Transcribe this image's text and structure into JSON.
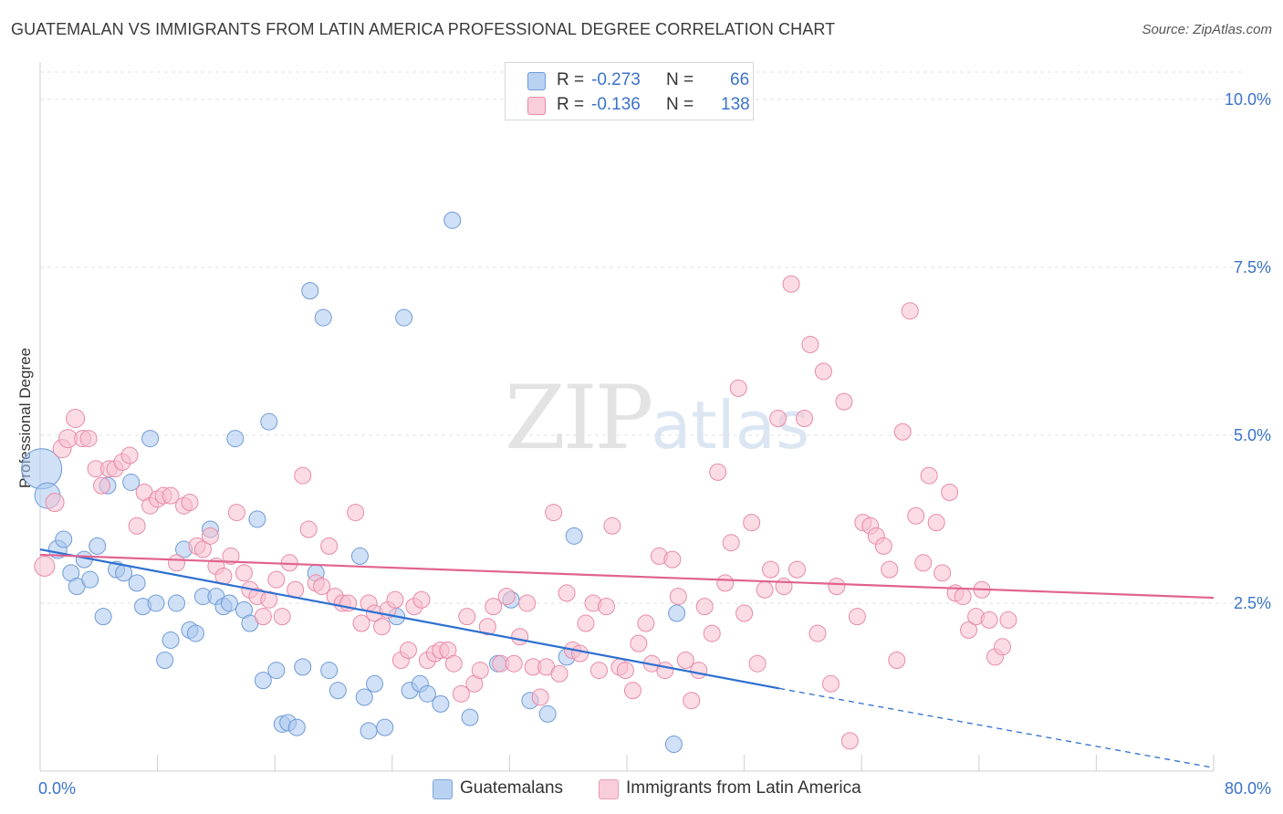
{
  "title": "GUATEMALAN VS IMMIGRANTS FROM LATIN AMERICA PROFESSIONAL DEGREE CORRELATION CHART",
  "source": "Source: ZipAtlas.com",
  "watermark": {
    "zip": "ZIP",
    "atlas": "atlas"
  },
  "legend": {
    "r_label": "R =",
    "n_label": "N =",
    "rows": [
      {
        "r": "-0.273",
        "n": "66",
        "color": "#a9c6ee",
        "border": "#6f9bd8"
      },
      {
        "r": "-0.136",
        "n": "138",
        "color": "#f7bfd0",
        "border": "#e88aa8"
      }
    ]
  },
  "chart_data": {
    "type": "scatter",
    "ylabel": "Professional Degree",
    "xlim": [
      0,
      80
    ],
    "ylim": [
      0,
      10.5
    ],
    "x_tick_labels": [
      {
        "value": 0,
        "label": "0.0%"
      },
      {
        "value": 80,
        "label": "80.0%"
      }
    ],
    "y_tick_labels": [
      {
        "value": 2.5,
        "label": "2.5%"
      },
      {
        "value": 5.0,
        "label": "5.0%"
      },
      {
        "value": 7.5,
        "label": "7.5%"
      },
      {
        "value": 10.0,
        "label": "10.0%"
      }
    ],
    "grid": true,
    "series": [
      {
        "name": "Guatemalans",
        "color": "#a9c6ee",
        "stroke": "#6f9bd8",
        "trend_color": "#2e6fd0",
        "trend": {
          "x0": 0,
          "y0": 3.3,
          "x1": 50.4,
          "y1": 1.23,
          "dash_to_x": 80,
          "dash_to_y": 0.05
        },
        "points": [
          [
            0.1,
            4.5,
            22
          ],
          [
            0.5,
            4.1,
            14
          ],
          [
            1.2,
            3.3,
            10
          ],
          [
            1.6,
            3.45,
            9
          ],
          [
            2.1,
            2.95,
            9
          ],
          [
            2.5,
            2.75,
            9
          ],
          [
            3.0,
            3.15,
            9
          ],
          [
            3.4,
            2.85,
            9
          ],
          [
            3.9,
            3.35,
            9
          ],
          [
            4.3,
            2.3,
            9
          ],
          [
            4.6,
            4.25,
            9
          ],
          [
            5.2,
            3.0,
            9
          ],
          [
            5.7,
            2.95,
            9
          ],
          [
            6.2,
            4.3,
            9
          ],
          [
            6.6,
            2.8,
            9
          ],
          [
            7.0,
            2.45,
            9
          ],
          [
            7.5,
            4.95,
            9
          ],
          [
            7.9,
            2.5,
            9
          ],
          [
            8.5,
            1.65,
            9
          ],
          [
            8.9,
            1.95,
            9
          ],
          [
            9.3,
            2.5,
            9
          ],
          [
            9.8,
            3.3,
            9
          ],
          [
            10.2,
            2.1,
            9
          ],
          [
            10.6,
            2.05,
            9
          ],
          [
            11.1,
            2.6,
            9
          ],
          [
            11.6,
            3.6,
            9
          ],
          [
            12.0,
            2.6,
            9
          ],
          [
            12.5,
            2.45,
            9
          ],
          [
            12.9,
            2.5,
            9
          ],
          [
            13.3,
            4.95,
            9
          ],
          [
            13.9,
            2.4,
            9
          ],
          [
            14.3,
            2.2,
            9
          ],
          [
            14.8,
            3.75,
            9
          ],
          [
            15.2,
            1.35,
            9
          ],
          [
            15.6,
            5.2,
            9
          ],
          [
            16.1,
            1.5,
            9
          ],
          [
            16.5,
            0.7,
            9
          ],
          [
            16.9,
            0.72,
            9
          ],
          [
            17.5,
            0.65,
            9
          ],
          [
            17.9,
            1.55,
            9
          ],
          [
            18.4,
            7.15,
            9
          ],
          [
            18.8,
            2.95,
            9
          ],
          [
            19.3,
            6.75,
            9
          ],
          [
            19.7,
            1.5,
            9
          ],
          [
            20.3,
            1.2,
            9
          ],
          [
            21.8,
            3.2,
            9
          ],
          [
            22.1,
            1.1,
            9
          ],
          [
            22.4,
            0.6,
            9
          ],
          [
            22.8,
            1.3,
            9
          ],
          [
            23.5,
            0.65,
            9
          ],
          [
            24.3,
            2.3,
            9
          ],
          [
            24.8,
            6.75,
            9
          ],
          [
            25.2,
            1.2,
            9
          ],
          [
            25.9,
            1.3,
            9
          ],
          [
            26.4,
            1.15,
            9
          ],
          [
            27.3,
            1.0,
            9
          ],
          [
            28.1,
            8.2,
            9
          ],
          [
            29.3,
            0.8,
            9
          ],
          [
            31.2,
            1.6,
            9
          ],
          [
            32.1,
            2.55,
            9
          ],
          [
            33.4,
            1.05,
            9
          ],
          [
            34.6,
            0.85,
            9
          ],
          [
            35.9,
            1.7,
            9
          ],
          [
            36.4,
            3.5,
            9
          ],
          [
            43.4,
            2.35,
            9
          ],
          [
            43.2,
            0.4,
            9
          ]
        ]
      },
      {
        "name": "Immigrants from Latin America",
        "color": "#f7bfd0",
        "stroke": "#e88aa8",
        "trend_color": "#e0638f",
        "trend": {
          "x0": 0,
          "y0": 3.22,
          "x1": 80,
          "y1": 2.58
        },
        "points": [
          [
            0.3,
            3.05,
            11
          ],
          [
            1.0,
            4.0,
            10
          ],
          [
            1.5,
            4.8,
            10
          ],
          [
            1.9,
            4.95,
            10
          ],
          [
            2.4,
            5.25,
            10
          ],
          [
            2.9,
            4.95,
            9
          ],
          [
            3.3,
            4.95,
            9
          ],
          [
            3.8,
            4.5,
            9
          ],
          [
            4.2,
            4.25,
            9
          ],
          [
            4.7,
            4.5,
            9
          ],
          [
            5.1,
            4.5,
            9
          ],
          [
            5.6,
            4.6,
            9
          ],
          [
            6.1,
            4.7,
            9
          ],
          [
            6.6,
            3.65,
            9
          ],
          [
            7.1,
            4.15,
            9
          ],
          [
            7.5,
            3.95,
            9
          ],
          [
            8.0,
            4.05,
            9
          ],
          [
            8.4,
            4.1,
            9
          ],
          [
            8.9,
            4.1,
            9
          ],
          [
            9.3,
            3.1,
            9
          ],
          [
            9.8,
            3.95,
            9
          ],
          [
            10.2,
            4.0,
            9
          ],
          [
            10.7,
            3.35,
            9
          ],
          [
            11.1,
            3.3,
            9
          ],
          [
            11.6,
            3.5,
            9
          ],
          [
            12.0,
            3.05,
            9
          ],
          [
            12.5,
            2.9,
            9
          ],
          [
            13.0,
            3.2,
            9
          ],
          [
            13.4,
            3.85,
            9
          ],
          [
            13.9,
            2.95,
            9
          ],
          [
            14.3,
            2.7,
            9
          ],
          [
            14.8,
            2.6,
            9
          ],
          [
            15.2,
            2.3,
            9
          ],
          [
            15.6,
            2.55,
            9
          ],
          [
            16.1,
            2.85,
            9
          ],
          [
            16.5,
            2.3,
            9
          ],
          [
            17.0,
            3.1,
            9
          ],
          [
            17.4,
            2.7,
            9
          ],
          [
            17.9,
            4.4,
            9
          ],
          [
            18.3,
            3.6,
            9
          ],
          [
            18.8,
            2.8,
            9
          ],
          [
            19.2,
            2.75,
            9
          ],
          [
            19.7,
            3.35,
            9
          ],
          [
            20.1,
            2.6,
            9
          ],
          [
            20.6,
            2.5,
            9
          ],
          [
            21.0,
            2.5,
            9
          ],
          [
            21.5,
            3.85,
            9
          ],
          [
            21.9,
            2.2,
            9
          ],
          [
            22.4,
            2.5,
            9
          ],
          [
            22.8,
            2.35,
            9
          ],
          [
            23.3,
            2.15,
            9
          ],
          [
            23.7,
            2.4,
            9
          ],
          [
            24.2,
            2.55,
            9
          ],
          [
            24.6,
            1.65,
            9
          ],
          [
            25.1,
            1.8,
            9
          ],
          [
            25.5,
            2.45,
            9
          ],
          [
            26.0,
            2.55,
            9
          ],
          [
            26.4,
            1.65,
            9
          ],
          [
            26.9,
            1.75,
            9
          ],
          [
            27.3,
            1.8,
            9
          ],
          [
            27.8,
            1.8,
            9
          ],
          [
            28.2,
            1.6,
            9
          ],
          [
            28.7,
            1.15,
            9
          ],
          [
            29.1,
            2.3,
            9
          ],
          [
            29.6,
            1.3,
            9
          ],
          [
            30.0,
            1.5,
            9
          ],
          [
            30.5,
            2.15,
            9
          ],
          [
            30.9,
            2.45,
            9
          ],
          [
            31.4,
            1.6,
            9
          ],
          [
            31.8,
            2.6,
            9
          ],
          [
            32.3,
            1.6,
            9
          ],
          [
            32.7,
            2.0,
            9
          ],
          [
            33.2,
            2.5,
            9
          ],
          [
            33.6,
            1.55,
            9
          ],
          [
            34.1,
            1.1,
            9
          ],
          [
            34.5,
            1.55,
            9
          ],
          [
            35.0,
            3.85,
            9
          ],
          [
            35.4,
            1.45,
            9
          ],
          [
            35.9,
            2.65,
            9
          ],
          [
            36.3,
            1.8,
            9
          ],
          [
            36.8,
            1.75,
            9
          ],
          [
            37.2,
            2.2,
            9
          ],
          [
            37.7,
            2.5,
            9
          ],
          [
            38.1,
            1.5,
            9
          ],
          [
            38.6,
            2.45,
            9
          ],
          [
            39.0,
            3.65,
            9
          ],
          [
            39.5,
            1.55,
            9
          ],
          [
            39.9,
            1.5,
            9
          ],
          [
            40.4,
            1.2,
            9
          ],
          [
            40.8,
            1.9,
            9
          ],
          [
            41.3,
            2.2,
            9
          ],
          [
            41.7,
            1.6,
            9
          ],
          [
            42.2,
            3.2,
            9
          ],
          [
            42.6,
            1.5,
            9
          ],
          [
            43.1,
            3.15,
            9
          ],
          [
            43.5,
            2.6,
            9
          ],
          [
            44.0,
            1.65,
            9
          ],
          [
            44.4,
            1.05,
            9
          ],
          [
            44.9,
            1.5,
            9
          ],
          [
            45.3,
            2.45,
            9
          ],
          [
            45.8,
            2.05,
            9
          ],
          [
            46.2,
            4.45,
            9
          ],
          [
            46.7,
            2.8,
            9
          ],
          [
            47.1,
            3.4,
            9
          ],
          [
            47.6,
            5.7,
            9
          ],
          [
            48.0,
            2.35,
            9
          ],
          [
            48.5,
            3.7,
            9
          ],
          [
            48.9,
            1.6,
            9
          ],
          [
            49.4,
            2.7,
            9
          ],
          [
            49.8,
            3.0,
            9
          ],
          [
            50.3,
            5.25,
            9
          ],
          [
            50.7,
            2.75,
            9
          ],
          [
            51.2,
            7.25,
            9
          ],
          [
            51.6,
            3.0,
            9
          ],
          [
            52.1,
            5.25,
            9
          ],
          [
            52.5,
            6.35,
            9
          ],
          [
            53.0,
            2.05,
            9
          ],
          [
            53.4,
            5.95,
            9
          ],
          [
            53.9,
            1.3,
            9
          ],
          [
            54.3,
            2.75,
            9
          ],
          [
            54.8,
            5.5,
            9
          ],
          [
            55.2,
            0.45,
            9
          ],
          [
            55.7,
            2.3,
            9
          ],
          [
            56.1,
            3.7,
            9
          ],
          [
            56.6,
            3.65,
            9
          ],
          [
            57.0,
            3.5,
            9
          ],
          [
            57.5,
            3.35,
            9
          ],
          [
            57.9,
            3.0,
            9
          ],
          [
            58.4,
            1.65,
            9
          ],
          [
            58.8,
            5.05,
            9
          ],
          [
            59.3,
            6.85,
            9
          ],
          [
            59.7,
            3.8,
            9
          ],
          [
            60.2,
            3.1,
            9
          ],
          [
            60.6,
            4.4,
            9
          ],
          [
            61.1,
            3.7,
            9
          ],
          [
            61.5,
            2.95,
            9
          ],
          [
            62.0,
            4.15,
            9
          ],
          [
            62.4,
            2.65,
            9
          ],
          [
            62.9,
            2.6,
            9
          ],
          [
            63.3,
            2.1,
            9
          ],
          [
            63.8,
            2.3,
            9
          ],
          [
            64.2,
            2.7,
            9
          ],
          [
            64.7,
            2.25,
            9
          ],
          [
            65.1,
            1.7,
            9
          ],
          [
            65.6,
            1.85,
            9
          ],
          [
            66.0,
            2.25,
            9
          ]
        ]
      }
    ]
  },
  "bottom_legend": [
    {
      "label": "Guatemalans",
      "color": "#b9d2f2",
      "border": "#7fa6dc"
    },
    {
      "label": "Immigrants from Latin America",
      "color": "#f9cdd9",
      "border": "#ea9ab3"
    }
  ]
}
